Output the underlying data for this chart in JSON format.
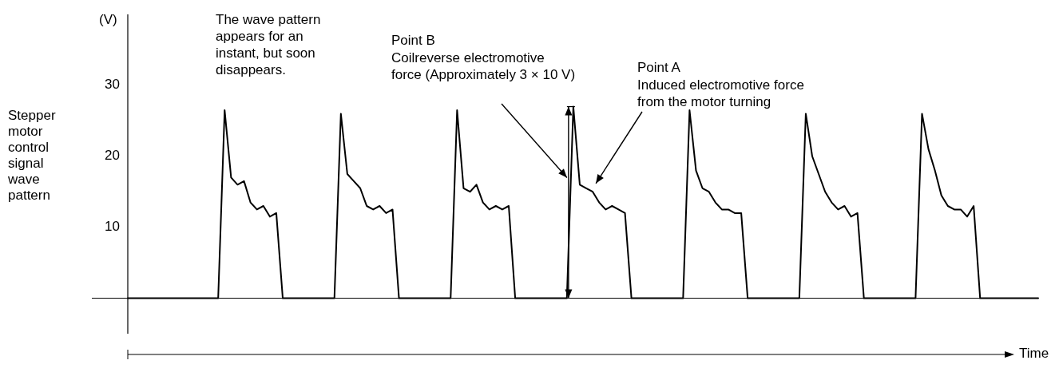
{
  "chart_data": {
    "type": "line",
    "xlabel": "Time",
    "ylabel": "Stepper motor control signal wave pattern",
    "annotations": [
      "(V)",
      "The wave pattern appears for an instant, but soon disappears.",
      "Point B",
      "Coilreverse electromotive force (Approximately 3 × 10 V)",
      "Point A",
      "Induced electromotive force from the motor turning"
    ],
    "categories": [
      null,
      null,
      null,
      null,
      null,
      null,
      null,
      null,
      null,
      null,
      null,
      null,
      null,
      null,
      null,
      null,
      null,
      null,
      null,
      null,
      null,
      null,
      null,
      null,
      null,
      null,
      null,
      null,
      null,
      null,
      null,
      null,
      null,
      null,
      null,
      null,
      null,
      null,
      null,
      null,
      null,
      null,
      null,
      null,
      null,
      null,
      null,
      null,
      null,
      null,
      null,
      null,
      null,
      null,
      null,
      null,
      null,
      null,
      null,
      null,
      null,
      null,
      null,
      null,
      null,
      null,
      null,
      null,
      null,
      null,
      null,
      null,
      null,
      null,
      null,
      null,
      null,
      null,
      null,
      null,
      null,
      null,
      null,
      null,
      null,
      null,
      null,
      null,
      null,
      null,
      null,
      null,
      null,
      null,
      null,
      null,
      null,
      null,
      null,
      null,
      null,
      null,
      null,
      null,
      null,
      null,
      null,
      null,
      null,
      null,
      null,
      null,
      null,
      null,
      null,
      null,
      null,
      null,
      null,
      null,
      null,
      null,
      null,
      null,
      null,
      null,
      null,
      null,
      null,
      null,
      null,
      null,
      null,
      null,
      null,
      null,
      null,
      null,
      null,
      null,
      null,
      null
    ],
    "series": [
      {
        "color": "#000000",
        "values": [
          0,
          0,
          0,
          0,
          0,
          0,
          0,
          0,
          0,
          0,
          0,
          0,
          0,
          0,
          0,
          26.5,
          17,
          16,
          16.5,
          13.5,
          12.5,
          13,
          11.5,
          12,
          0,
          0,
          0,
          0,
          0,
          0,
          0,
          0,
          0,
          26,
          17.5,
          16.5,
          15.5,
          13,
          12.5,
          13,
          12,
          12.5,
          0,
          0,
          0,
          0,
          0,
          0,
          0,
          0,
          0,
          26.5,
          15.5,
          15,
          16,
          13.5,
          12.5,
          13,
          12.5,
          13,
          0,
          0,
          0,
          0,
          0,
          0,
          0,
          0,
          0,
          27,
          16,
          15.5,
          15,
          13.5,
          12.5,
          13,
          12.5,
          12,
          0,
          0,
          0,
          0,
          0,
          0,
          0,
          0,
          0,
          26.5,
          18,
          15.5,
          15,
          13.5,
          12.5,
          12.5,
          12,
          12,
          0,
          0,
          0,
          0,
          0,
          0,
          0,
          0,
          0,
          26,
          20,
          17.5,
          15,
          13.5,
          12.5,
          13,
          11.5,
          12,
          0,
          0,
          0,
          0,
          0,
          0,
          0,
          0,
          0,
          26,
          21,
          18,
          14.5,
          13,
          12.5,
          12.5,
          11.5,
          13,
          0,
          0,
          0,
          0,
          0,
          0,
          0,
          0,
          0,
          0
        ]
      }
    ],
    "ylim": [
      -5,
      40
    ],
    "yticks": [
      10,
      20,
      30
    ],
    "tick_labels": "y",
    "grid": false,
    "marker": "none",
    "line_style": "solid"
  }
}
